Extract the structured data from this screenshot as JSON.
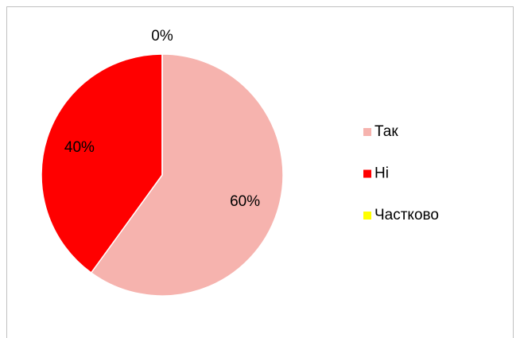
{
  "chart_data": {
    "type": "pie",
    "categories": [
      "Так",
      "Ні",
      "Частково"
    ],
    "values": [
      60,
      40,
      0
    ],
    "value_labels": [
      "60%",
      "40%",
      "0%"
    ],
    "colors": [
      "#f6b3ae",
      "#ff0000",
      "#ffff00"
    ],
    "legend": "right"
  }
}
